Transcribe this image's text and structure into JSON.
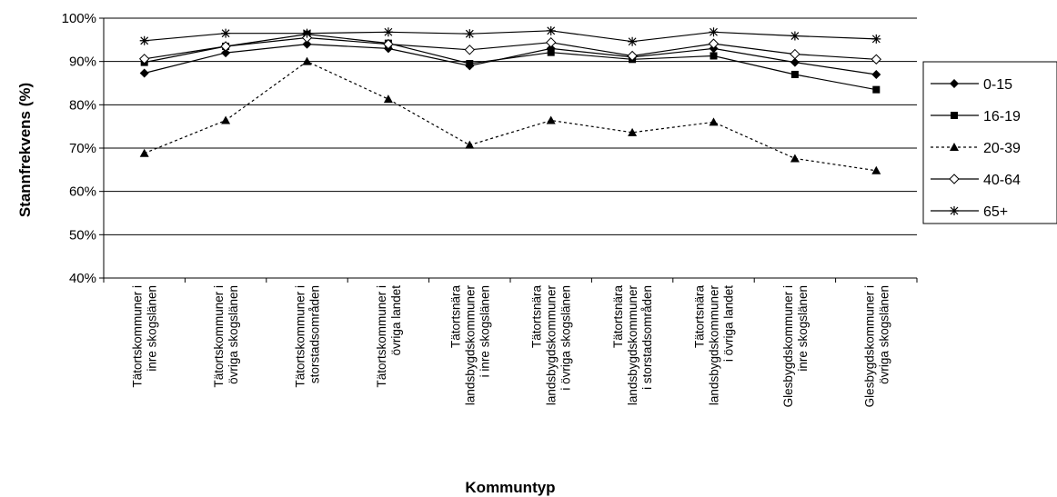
{
  "chart_data": {
    "type": "line",
    "title": "",
    "xlabel": "Kommuntyp",
    "ylabel": "Stannfrekvens (%)",
    "ylim": [
      0.4,
      1.0
    ],
    "yticks": [
      "40%",
      "50%",
      "60%",
      "70%",
      "80%",
      "90%",
      "100%"
    ],
    "grid": true,
    "legend_position": "right",
    "categories": [
      [
        "Tätortskommuner i",
        "inre skogslänen"
      ],
      [
        "Tätortskommuner i",
        "övriga skogslänen"
      ],
      [
        "Tätortskommuner i",
        "storstadsområden"
      ],
      [
        "Tätortskommuner i",
        "övriga landet"
      ],
      [
        "Tätortsnära",
        "landsbygdskommuner",
        "i inre skogslänen"
      ],
      [
        "Tätortsnära",
        "landsbygdskommuner",
        "i övriga skogslänen"
      ],
      [
        "Tätortsnära",
        "landsbygdskommuner",
        "i storstadsområden"
      ],
      [
        "Tätortsnära",
        "landsbygdskommuner",
        "i övriga landet"
      ],
      [
        "Glesbygdskommuner i",
        "inre skogslänen"
      ],
      [
        "Glesbygdskommuner i",
        "övriga skogslänen"
      ]
    ],
    "series": [
      {
        "name": "0-15",
        "marker": "diamond",
        "dash": false,
        "values": [
          0.873,
          0.92,
          0.94,
          0.93,
          0.89,
          0.93,
          0.91,
          0.93,
          0.898,
          0.87
        ]
      },
      {
        "name": "16-19",
        "marker": "square",
        "dash": false,
        "values": [
          0.898,
          0.935,
          0.963,
          0.942,
          0.895,
          0.921,
          0.905,
          0.913,
          0.87,
          0.835
        ]
      },
      {
        "name": "20-39",
        "marker": "triangle",
        "dash": true,
        "values": [
          0.688,
          0.764,
          0.9,
          0.813,
          0.707,
          0.764,
          0.736,
          0.76,
          0.676,
          0.648
        ]
      },
      {
        "name": "40-64",
        "marker": "diamond-open",
        "dash": false,
        "values": [
          0.906,
          0.935,
          0.955,
          0.94,
          0.927,
          0.944,
          0.913,
          0.941,
          0.917,
          0.905
        ]
      },
      {
        "name": "65+",
        "marker": "star",
        "dash": false,
        "values": [
          0.948,
          0.965,
          0.965,
          0.968,
          0.964,
          0.971,
          0.946,
          0.968,
          0.959,
          0.952
        ]
      }
    ]
  }
}
